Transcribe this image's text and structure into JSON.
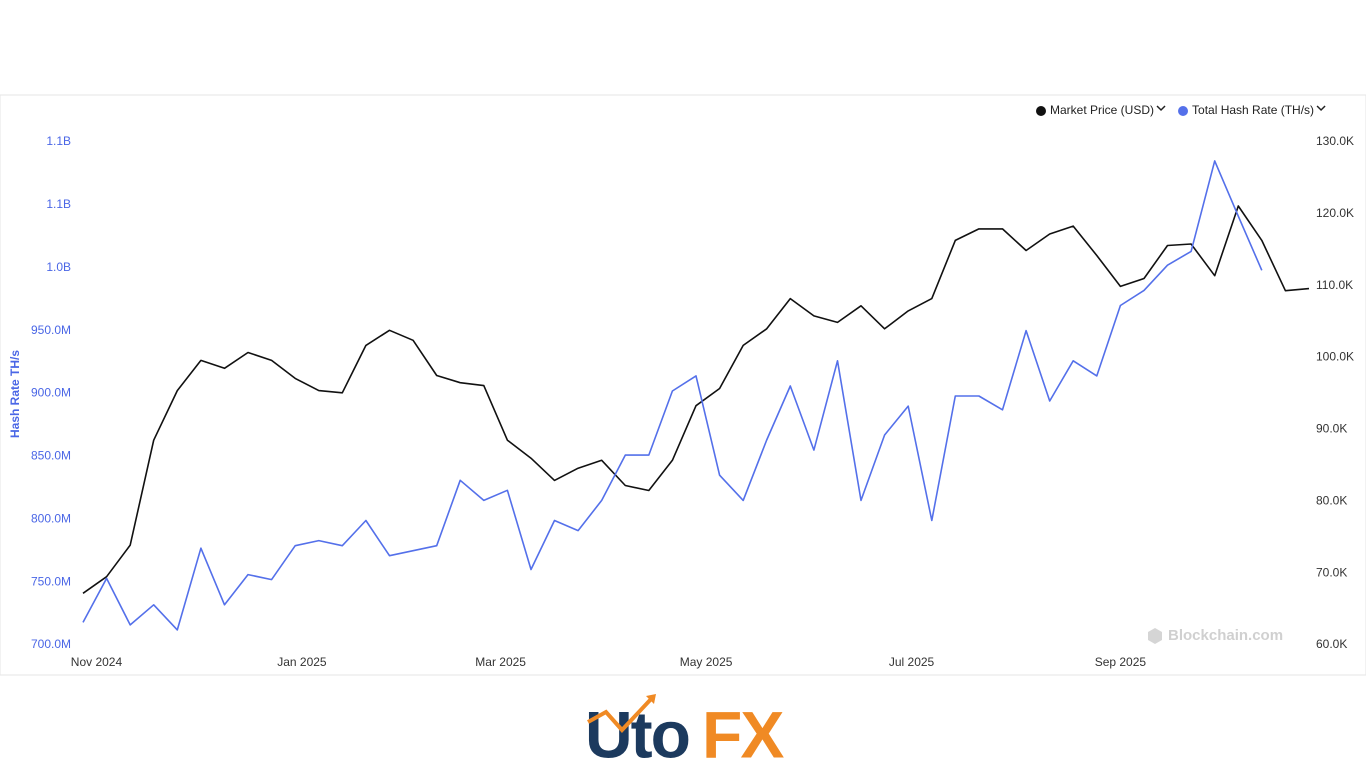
{
  "chart_data": {
    "type": "line",
    "y_label": "Hash Rate TH/s",
    "watermark": "Blockchain.com",
    "x": [
      -4,
      3,
      10,
      17,
      24,
      31,
      38,
      45,
      52,
      59,
      66,
      73,
      80,
      87,
      94,
      101,
      108,
      115,
      122,
      129,
      136,
      143,
      150,
      157,
      164,
      171,
      178,
      185,
      192,
      199,
      206,
      213,
      220,
      227,
      234,
      241,
      248,
      255,
      262,
      269,
      276,
      283,
      290,
      297,
      304,
      311,
      318,
      325,
      332,
      339,
      346,
      353,
      360
    ],
    "xlim": [
      -4,
      360
    ],
    "xticks": [
      {
        "value": 0,
        "label": "Nov 2024"
      },
      {
        "value": 61,
        "label": "Jan 2025"
      },
      {
        "value": 120,
        "label": "Mar 2025"
      },
      {
        "value": 181,
        "label": "May 2025"
      },
      {
        "value": 242,
        "label": "Jul 2025"
      },
      {
        "value": 304,
        "label": "Sep 2025"
      }
    ],
    "ylim": [
      700000000,
      1100000000
    ],
    "yticks": [
      {
        "value": 700000000,
        "label": "700.0M"
      },
      {
        "value": 750000000,
        "label": "750.0M"
      },
      {
        "value": 800000000,
        "label": "800.0M"
      },
      {
        "value": 850000000,
        "label": "850.0M"
      },
      {
        "value": 900000000,
        "label": "900.0M"
      },
      {
        "value": 950000000,
        "label": "950.0M"
      },
      {
        "value": 1000000000,
        "label": "1.0B"
      },
      {
        "value": 1050000000,
        "label": "1.1B"
      },
      {
        "value": 1100000000,
        "label": "1.1B"
      }
    ],
    "y2lim": [
      60000,
      130000
    ],
    "y2ticks": [
      {
        "value": 60000,
        "label": "60.0K"
      },
      {
        "value": 70000,
        "label": "70.0K"
      },
      {
        "value": 80000,
        "label": "80.0K"
      },
      {
        "value": 90000,
        "label": "90.0K"
      },
      {
        "value": 100000,
        "label": "100.0K"
      },
      {
        "value": 110000,
        "label": "110.0K"
      },
      {
        "value": 120000,
        "label": "120.0K"
      },
      {
        "value": 130000,
        "label": "130.0K"
      }
    ],
    "series": [
      {
        "name": "Market Price (USD)",
        "color": "#111111",
        "axis": "y2",
        "values": [
          67200,
          69500,
          73900,
          88500,
          95400,
          99600,
          98500,
          100700,
          99600,
          97100,
          95400,
          95100,
          101700,
          103800,
          102400,
          97500,
          96500,
          96100,
          88500,
          86000,
          82900,
          84600,
          85700,
          82200,
          81500,
          85700,
          93300,
          95700,
          101700,
          104000,
          108200,
          105800,
          104900,
          107200,
          104000,
          106500,
          108200,
          116300,
          117900,
          117900,
          114900,
          117200,
          118300,
          114200,
          109900,
          111000,
          115600,
          115800,
          111400,
          121100,
          116300,
          109300,
          109600
        ]
      },
      {
        "name": "Total Hash Rate (TH/s)",
        "color": "#5470ea",
        "axis": "y",
        "values": [
          718000000,
          753000000,
          716000000,
          732000000,
          712000000,
          777000000,
          732000000,
          756000000,
          752000000,
          779000000,
          783000000,
          779000000,
          799000000,
          771000000,
          775000000,
          779000000,
          831000000,
          815000000,
          823000000,
          760000000,
          799000000,
          791000000,
          815000000,
          851000000,
          851000000,
          902000000,
          914000000,
          835000000,
          815000000,
          863000000,
          906000000,
          855000000,
          926000000,
          815000000,
          867000000,
          890000000,
          799000000,
          898000000,
          898000000,
          887000000,
          950000000,
          894000000,
          926000000,
          914000000,
          970000000,
          982000000,
          1002000000,
          1013000000,
          1085000000,
          1041000000,
          998000000,
          null,
          null
        ]
      }
    ]
  },
  "brand": {
    "part1": "Uto",
    "part2": "FX"
  }
}
